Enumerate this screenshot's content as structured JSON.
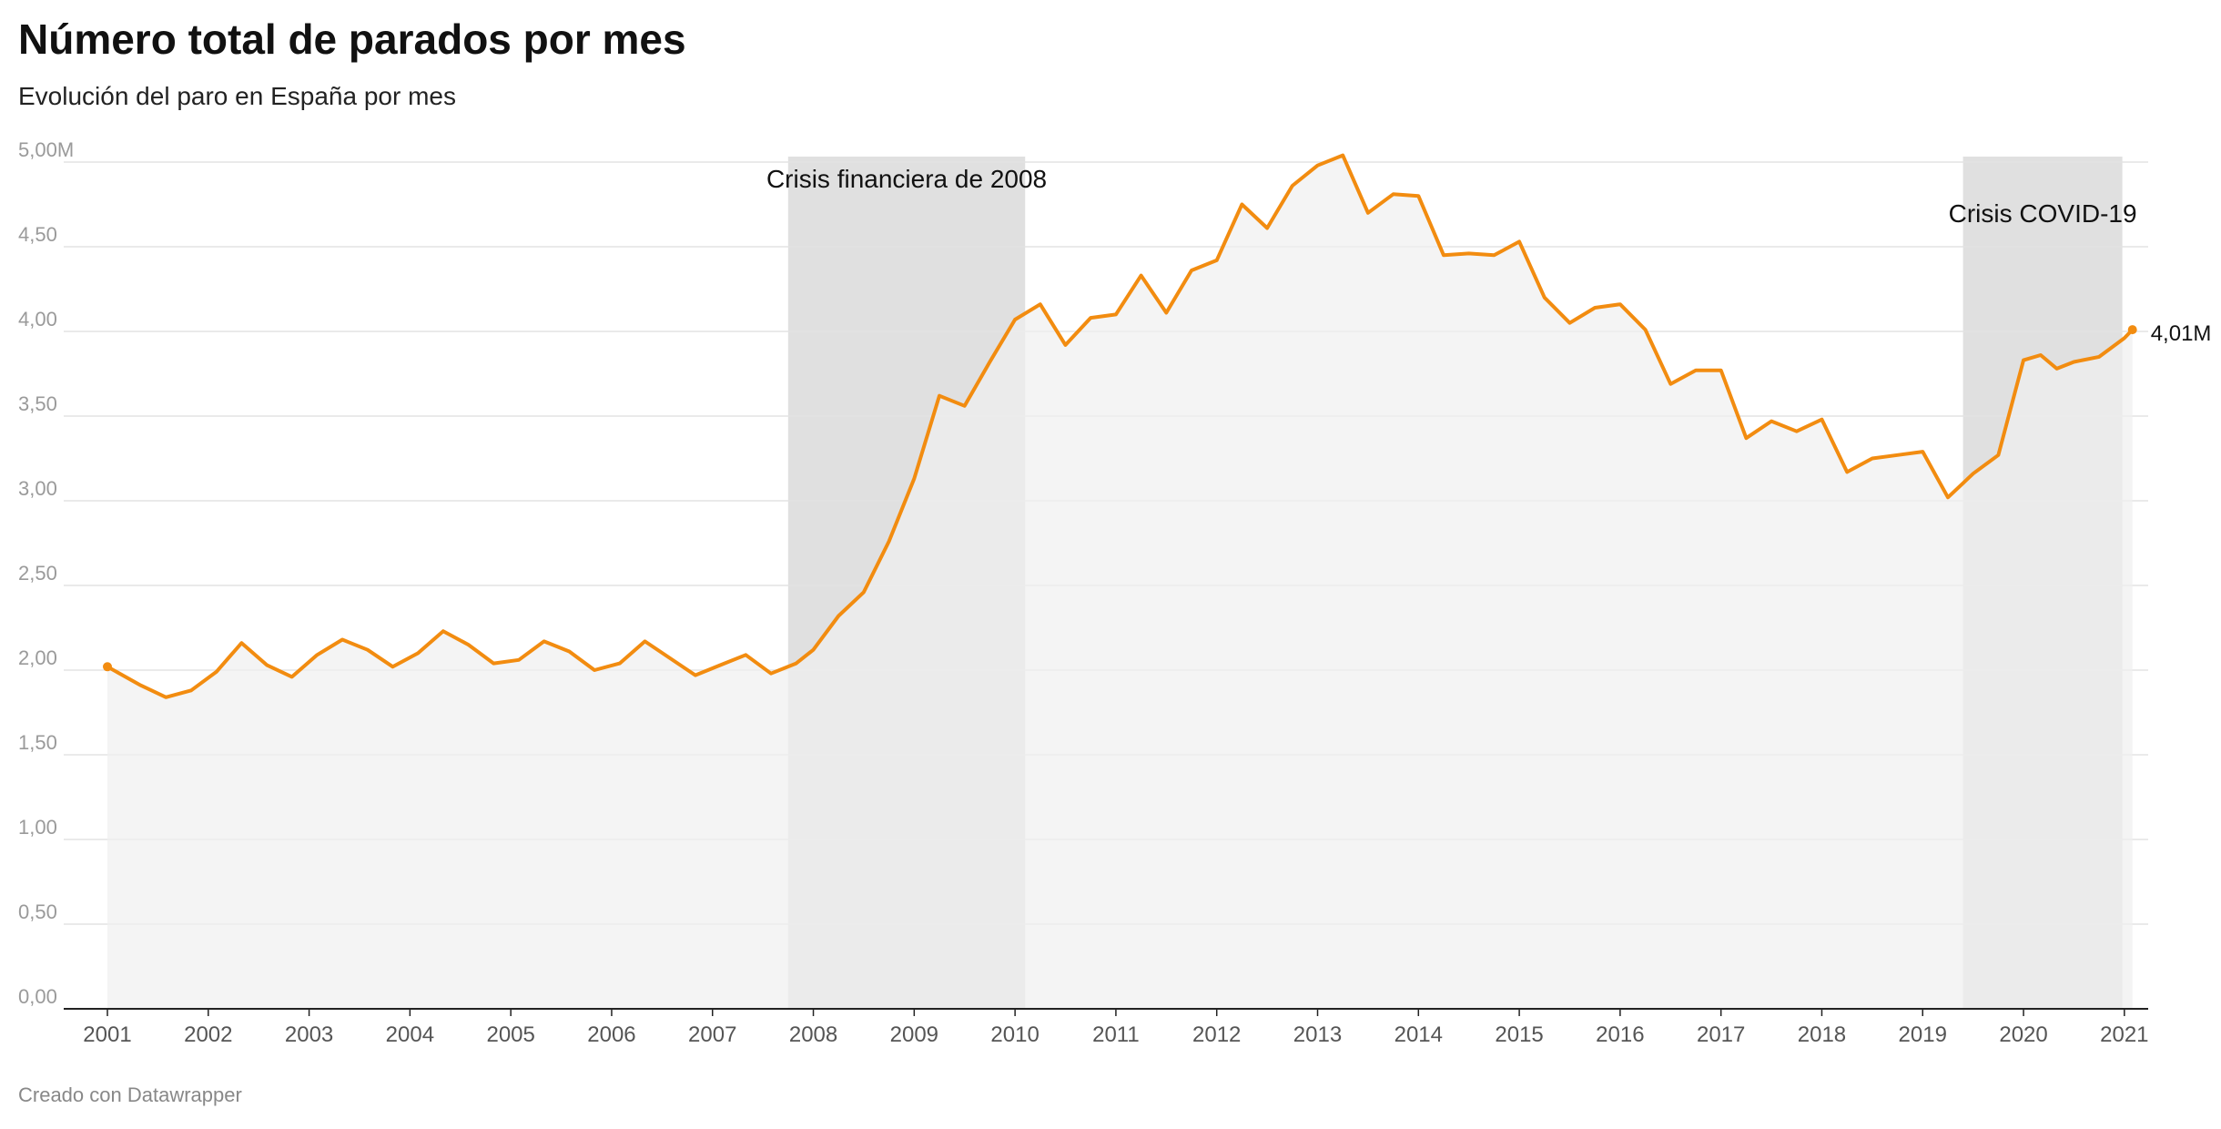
{
  "title": "Número total de parados por mes",
  "subtitle": "Evolución del paro en España por mes",
  "footer": "Creado con Datawrapper",
  "colors": {
    "line": "#f28c10",
    "area": "#efefef",
    "band": "#e0e0e0",
    "grid": "#e3e3e3",
    "axis": "#222222"
  },
  "chart_data": {
    "type": "area",
    "ylim": [
      0,
      5.0
    ],
    "yticks": [
      0,
      0.5,
      1.0,
      1.5,
      2.0,
      2.5,
      3.0,
      3.5,
      4.0,
      4.5,
      5.0
    ],
    "ytick_labels": [
      "0,00",
      "0,50",
      "1,00",
      "1,50",
      "2,00",
      "2,50",
      "3,00",
      "3,50",
      "4,00",
      "4,50",
      "5,00M"
    ],
    "xlim": [
      2001.0,
      2021.2
    ],
    "xticks": [
      2001,
      2002,
      2003,
      2004,
      2005,
      2006,
      2007,
      2008,
      2009,
      2010,
      2011,
      2012,
      2013,
      2014,
      2015,
      2016,
      2017,
      2018,
      2019,
      2020,
      2021
    ],
    "xtick_labels": [
      "2001",
      "2002",
      "2003",
      "2004",
      "2005",
      "2006",
      "2007",
      "2008",
      "2009",
      "2010",
      "2011",
      "2012",
      "2013",
      "2014",
      "2015",
      "2016",
      "2017",
      "2018",
      "2019",
      "2020",
      "2021"
    ],
    "annotations": [
      {
        "label": "Crisis financiera de 2008",
        "x_start": 2007.75,
        "x_end": 2010.1
      },
      {
        "label": "Crisis COVID-19",
        "x_start": 2019.4,
        "x_end": 2020.98
      }
    ],
    "end_label": "4,01M",
    "series": [
      {
        "x": [
          2001.0,
          2001.33,
          2001.58,
          2001.83,
          2002.08,
          2002.33,
          2002.58,
          2002.83,
          2003.08,
          2003.33,
          2003.58,
          2003.83,
          2004.08,
          2004.33,
          2004.58,
          2004.83,
          2005.08,
          2005.33,
          2005.58,
          2005.83,
          2006.08,
          2006.33,
          2006.58,
          2006.83,
          2007.08,
          2007.33,
          2007.58,
          2007.83,
          2008.0,
          2008.25,
          2008.5,
          2008.75,
          2009.0,
          2009.25,
          2009.5,
          2009.75,
          2010.0,
          2010.25,
          2010.5,
          2010.75,
          2011.0,
          2011.25,
          2011.5,
          2011.75,
          2012.0,
          2012.25,
          2012.5,
          2012.75,
          2013.0,
          2013.25,
          2013.5,
          2013.75,
          2014.0,
          2014.25,
          2014.5,
          2014.75,
          2015.0,
          2015.25,
          2015.5,
          2015.75,
          2016.0,
          2016.25,
          2016.5,
          2016.75,
          2017.0,
          2017.25,
          2017.5,
          2017.75,
          2018.0,
          2018.25,
          2018.5,
          2018.75,
          2019.0,
          2019.25,
          2019.5,
          2019.75,
          2020.0,
          2020.17,
          2020.33,
          2020.5,
          2020.75,
          2021.0,
          2021.08
        ],
        "y": [
          2.02,
          1.91,
          1.84,
          1.88,
          1.99,
          2.16,
          2.03,
          1.96,
          2.09,
          2.18,
          2.12,
          2.02,
          2.1,
          2.23,
          2.15,
          2.04,
          2.06,
          2.17,
          2.11,
          2.0,
          2.04,
          2.17,
          2.07,
          1.97,
          2.03,
          2.09,
          1.98,
          2.04,
          2.12,
          2.32,
          2.46,
          2.76,
          3.13,
          3.62,
          3.56,
          3.82,
          4.07,
          4.16,
          3.92,
          4.08,
          4.1,
          4.33,
          4.11,
          4.36,
          4.42,
          4.75,
          4.61,
          4.86,
          4.98,
          5.04,
          4.7,
          4.81,
          4.8,
          4.45,
          4.46,
          4.45,
          4.53,
          4.2,
          4.05,
          4.14,
          4.16,
          4.01,
          3.69,
          3.77,
          3.77,
          3.37,
          3.47,
          3.41,
          3.48,
          3.17,
          3.25,
          3.27,
          3.29,
          3.02,
          3.16,
          3.27,
          3.83,
          3.86,
          3.78,
          3.82,
          3.85,
          3.96,
          4.01
        ]
      }
    ]
  }
}
